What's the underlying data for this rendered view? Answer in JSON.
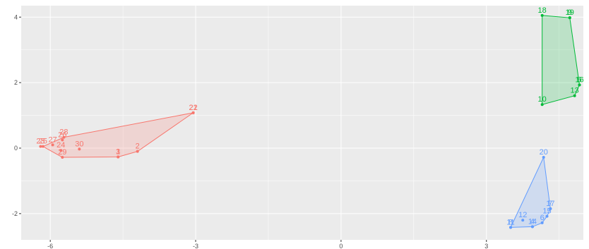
{
  "chart_data": {
    "type": "scatter",
    "title": "",
    "xlabel": "",
    "ylabel": "",
    "xlim": [
      -6.6,
      5.0
    ],
    "ylim": [
      -2.8,
      4.35
    ],
    "x_ticks": [
      -6,
      -3,
      0,
      3
    ],
    "y_ticks": [
      -2,
      0,
      2,
      4
    ],
    "x_tick_labels": [
      "-6",
      "-3",
      "0",
      "3"
    ],
    "y_tick_labels": [
      "-2",
      "0",
      "2",
      "4"
    ],
    "grid": true,
    "legend": "none",
    "series": [
      {
        "color": "#F8766D",
        "points": [
          {
            "label": "21",
            "x": -3.05,
            "y": 1.08
          },
          {
            "label": "22",
            "x": -3.05,
            "y": 1.08
          },
          {
            "label": "2",
            "x": -4.2,
            "y": -0.1
          },
          {
            "label": "3",
            "x": -4.6,
            "y": -0.27
          },
          {
            "label": "1",
            "x": -4.6,
            "y": -0.27
          },
          {
            "label": "30",
            "x": -5.4,
            "y": -0.03
          },
          {
            "label": "29",
            "x": -5.75,
            "y": -0.28
          },
          {
            "label": "24",
            "x": -5.78,
            "y": -0.07
          },
          {
            "label": "28",
            "x": -5.72,
            "y": 0.33
          },
          {
            "label": "26",
            "x": -5.75,
            "y": 0.25
          },
          {
            "label": "27",
            "x": -5.95,
            "y": 0.1
          },
          {
            "label": "25",
            "x": -6.15,
            "y": 0.05
          },
          {
            "label": "23",
            "x": -6.2,
            "y": 0.05
          }
        ],
        "hull": [
          "21",
          "2",
          "3",
          "29",
          "25",
          "28"
        ]
      },
      {
        "color": "#00BA38",
        "points": [
          {
            "label": "18",
            "x": 4.15,
            "y": 4.05
          },
          {
            "label": "19",
            "x": 4.72,
            "y": 3.98
          },
          {
            "label": "9",
            "x": 4.72,
            "y": 3.98
          },
          {
            "label": "16",
            "x": 4.92,
            "y": 1.93
          },
          {
            "label": "5",
            "x": 4.92,
            "y": 1.93
          },
          {
            "label": "13",
            "x": 4.82,
            "y": 1.6
          },
          {
            "label": "10",
            "x": 4.15,
            "y": 1.33
          }
        ],
        "hull": [
          "18",
          "19",
          "16",
          "13",
          "10"
        ]
      },
      {
        "color": "#619CFF",
        "points": [
          {
            "label": "20",
            "x": 4.18,
            "y": -0.28
          },
          {
            "label": "17",
            "x": 4.32,
            "y": -1.85
          },
          {
            "label": "7",
            "x": 4.32,
            "y": -1.85
          },
          {
            "label": "15",
            "x": 4.25,
            "y": -2.08
          },
          {
            "label": "6",
            "x": 4.15,
            "y": -2.28
          },
          {
            "label": "14",
            "x": 3.95,
            "y": -2.4
          },
          {
            "label": "4",
            "x": 3.95,
            "y": -2.4
          },
          {
            "label": "12",
            "x": 3.75,
            "y": -2.2
          },
          {
            "label": "11",
            "x": 3.5,
            "y": -2.42
          },
          {
            "label": "8",
            "x": 3.5,
            "y": -2.42
          }
        ],
        "hull": [
          "20",
          "17",
          "15",
          "6",
          "14",
          "11"
        ]
      }
    ]
  }
}
